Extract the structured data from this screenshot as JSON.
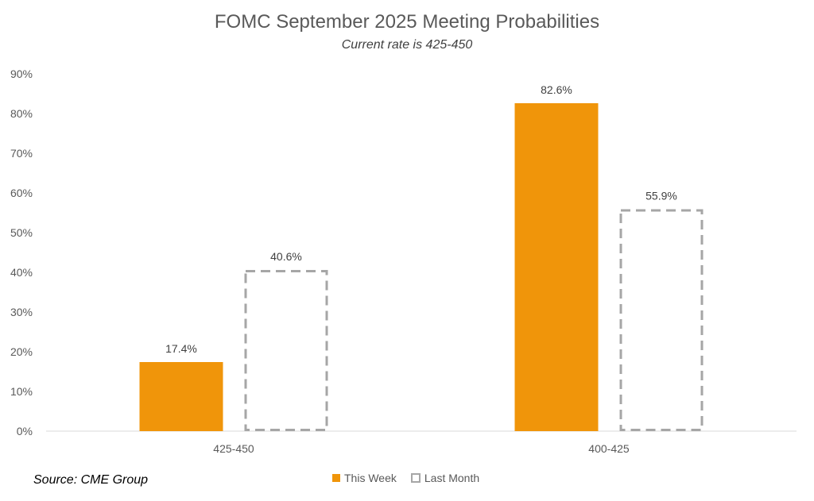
{
  "chart_data": {
    "type": "bar",
    "title": "FOMC September 2025 Meeting Probabilities",
    "subtitle": "Current rate is 425-450",
    "categories": [
      "425-450",
      "400-425"
    ],
    "series": [
      {
        "name": "This Week",
        "values": [
          17.4,
          82.6
        ],
        "labels": [
          "17.4%",
          "82.6%"
        ],
        "color": "#f0950a",
        "style": "solid"
      },
      {
        "name": "Last Month",
        "values": [
          40.6,
          55.9
        ],
        "labels": [
          "40.6%",
          "55.9%"
        ],
        "color": "#a6a6a6",
        "style": "dashed-outline"
      }
    ],
    "ylim": [
      0,
      90
    ],
    "yticks": [
      "0%",
      "10%",
      "20%",
      "30%",
      "40%",
      "50%",
      "60%",
      "70%",
      "80%",
      "90%"
    ],
    "grid": false,
    "legend_position": "bottom"
  },
  "source": "Source: CME Group"
}
